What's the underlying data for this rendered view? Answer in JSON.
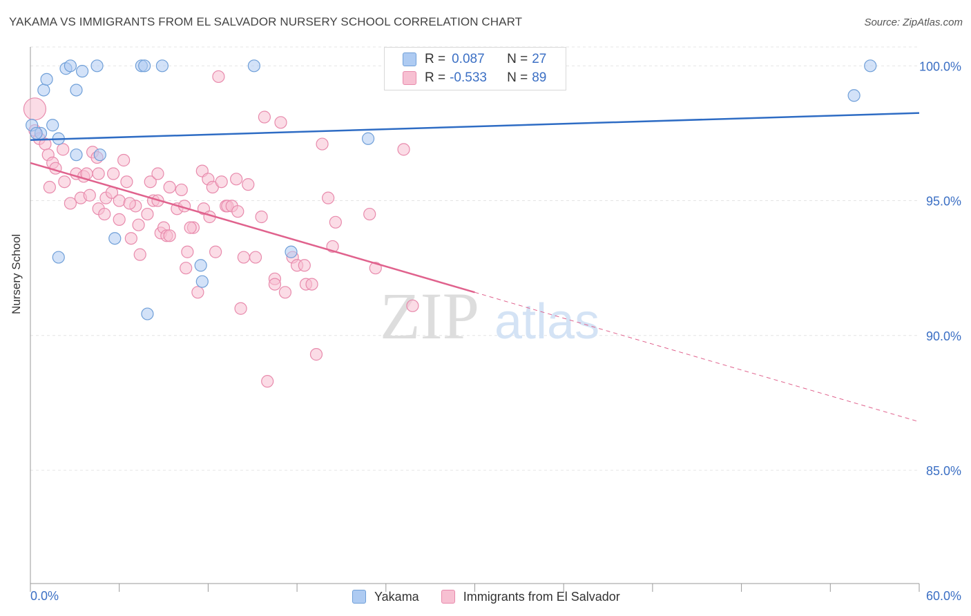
{
  "title": "YAKAMA VS IMMIGRANTS FROM EL SALVADOR NURSERY SCHOOL CORRELATION CHART",
  "source": "Source: ZipAtlas.com",
  "watermark": {
    "zip": "ZIP",
    "atlas": "atlas"
  },
  "legend": {
    "series1": {
      "r_label": "R =",
      "r_value": "0.087",
      "n_label": "N =",
      "n_value": "27"
    },
    "series2": {
      "r_label": "R =",
      "r_value": "-0.533",
      "n_label": "N =",
      "n_value": "89"
    }
  },
  "colors": {
    "blue_fill": "#aecbf2",
    "blue_stroke": "#6f9fd8",
    "blue_line": "#2e6cc4",
    "pink_fill": "#f7c0d2",
    "pink_stroke": "#e88aac",
    "pink_line": "#e0628d",
    "tick_label": "#3b6fc4"
  },
  "chart_data": {
    "type": "scatter",
    "title": "YAKAMA VS IMMIGRANTS FROM EL SALVADOR NURSERY SCHOOL CORRELATION CHART",
    "xlabel": "",
    "ylabel": "Nursery School",
    "xlim": [
      0,
      60
    ],
    "ylim": [
      80.8,
      100.7
    ],
    "x_tick_labels": [
      "0.0%",
      "60.0%"
    ],
    "y_ticks": [
      85,
      90,
      95,
      100
    ],
    "y_tick_labels": [
      "85.0%",
      "90.0%",
      "95.0%",
      "100.0%"
    ],
    "grid": true,
    "legend_position": "bottom-center",
    "series": [
      {
        "name": "Yakama",
        "r": 0.087,
        "n": 27,
        "trend": {
          "x": [
            0,
            60
          ],
          "y": [
            97.25,
            98.25
          ]
        },
        "points": [
          [
            0.1,
            97.8
          ],
          [
            0.7,
            97.5
          ],
          [
            0.9,
            99.1
          ],
          [
            1.1,
            99.5
          ],
          [
            1.5,
            97.8
          ],
          [
            1.9,
            97.3
          ],
          [
            2.4,
            99.9
          ],
          [
            2.7,
            100.0
          ],
          [
            3.1,
            99.1
          ],
          [
            3.5,
            99.8
          ],
          [
            4.5,
            100.0
          ],
          [
            7.5,
            100.0
          ],
          [
            7.7,
            100.0
          ],
          [
            8.9,
            100.0
          ],
          [
            15.1,
            100.0
          ],
          [
            3.1,
            96.7
          ],
          [
            4.7,
            96.7
          ],
          [
            5.7,
            93.6
          ],
          [
            1.9,
            92.9
          ],
          [
            11.5,
            92.6
          ],
          [
            11.6,
            92.0
          ],
          [
            7.9,
            90.8
          ],
          [
            17.6,
            93.1
          ],
          [
            22.8,
            97.3
          ],
          [
            55.6,
            98.9
          ],
          [
            56.7,
            100.0
          ],
          [
            0.4,
            97.5
          ]
        ]
      },
      {
        "name": "Immigrants from El Salvador",
        "r": -0.533,
        "n": 89,
        "trend": {
          "x": [
            0,
            30
          ],
          "y": [
            96.4,
            91.6
          ]
        },
        "trend_dashed": {
          "x": [
            30,
            60
          ],
          "y": [
            91.6,
            86.8
          ]
        },
        "points": [
          [
            0.3,
            98.4
          ],
          [
            0.3,
            97.6
          ],
          [
            0.6,
            97.3
          ],
          [
            1.0,
            97.1
          ],
          [
            1.2,
            96.7
          ],
          [
            1.5,
            96.4
          ],
          [
            1.7,
            96.2
          ],
          [
            2.3,
            95.7
          ],
          [
            2.2,
            96.9
          ],
          [
            3.1,
            96.0
          ],
          [
            3.6,
            95.9
          ],
          [
            3.4,
            95.1
          ],
          [
            4.0,
            95.2
          ],
          [
            4.2,
            96.8
          ],
          [
            4.5,
            96.6
          ],
          [
            4.6,
            96.0
          ],
          [
            4.6,
            94.7
          ],
          [
            5.0,
            94.5
          ],
          [
            5.1,
            95.1
          ],
          [
            5.5,
            95.3
          ],
          [
            5.6,
            96.0
          ],
          [
            6.0,
            94.3
          ],
          [
            6.0,
            95.0
          ],
          [
            6.3,
            96.5
          ],
          [
            6.5,
            95.7
          ],
          [
            6.8,
            93.6
          ],
          [
            7.1,
            94.8
          ],
          [
            7.3,
            94.1
          ],
          [
            7.4,
            93.0
          ],
          [
            7.9,
            94.5
          ],
          [
            8.1,
            95.7
          ],
          [
            8.3,
            95.0
          ],
          [
            8.6,
            95.0
          ],
          [
            8.8,
            93.8
          ],
          [
            9.0,
            94.0
          ],
          [
            9.2,
            93.7
          ],
          [
            9.4,
            93.7
          ],
          [
            9.9,
            94.7
          ],
          [
            10.2,
            95.4
          ],
          [
            10.4,
            94.8
          ],
          [
            10.5,
            92.5
          ],
          [
            10.6,
            93.1
          ],
          [
            11.0,
            94.0
          ],
          [
            11.3,
            91.6
          ],
          [
            11.6,
            96.1
          ],
          [
            11.7,
            94.7
          ],
          [
            12.0,
            95.8
          ],
          [
            12.1,
            94.4
          ],
          [
            12.3,
            95.5
          ],
          [
            12.5,
            93.1
          ],
          [
            12.9,
            95.7
          ],
          [
            13.2,
            94.8
          ],
          [
            13.3,
            94.8
          ],
          [
            13.6,
            94.8
          ],
          [
            13.9,
            95.8
          ],
          [
            14.0,
            94.6
          ],
          [
            14.4,
            92.9
          ],
          [
            14.7,
            95.6
          ],
          [
            15.2,
            92.9
          ],
          [
            15.6,
            94.4
          ],
          [
            15.8,
            98.1
          ],
          [
            16.5,
            92.1
          ],
          [
            16.5,
            91.9
          ],
          [
            16.9,
            97.9
          ],
          [
            17.2,
            91.6
          ],
          [
            17.7,
            92.9
          ],
          [
            18.0,
            92.6
          ],
          [
            18.5,
            92.6
          ],
          [
            18.6,
            91.9
          ],
          [
            19.0,
            91.9
          ],
          [
            19.7,
            97.1
          ],
          [
            20.1,
            95.1
          ],
          [
            20.4,
            93.3
          ],
          [
            20.6,
            94.2
          ],
          [
            12.7,
            99.6
          ],
          [
            22.9,
            94.5
          ],
          [
            23.3,
            92.5
          ],
          [
            25.2,
            96.9
          ],
          [
            25.8,
            91.1
          ],
          [
            19.3,
            89.3
          ],
          [
            16.0,
            88.3
          ],
          [
            14.2,
            91.0
          ],
          [
            9.4,
            95.5
          ],
          [
            3.8,
            96.0
          ],
          [
            1.3,
            95.5
          ],
          [
            6.7,
            94.9
          ],
          [
            10.8,
            94.0
          ],
          [
            2.7,
            94.9
          ],
          [
            8.6,
            96.0
          ]
        ]
      }
    ]
  }
}
